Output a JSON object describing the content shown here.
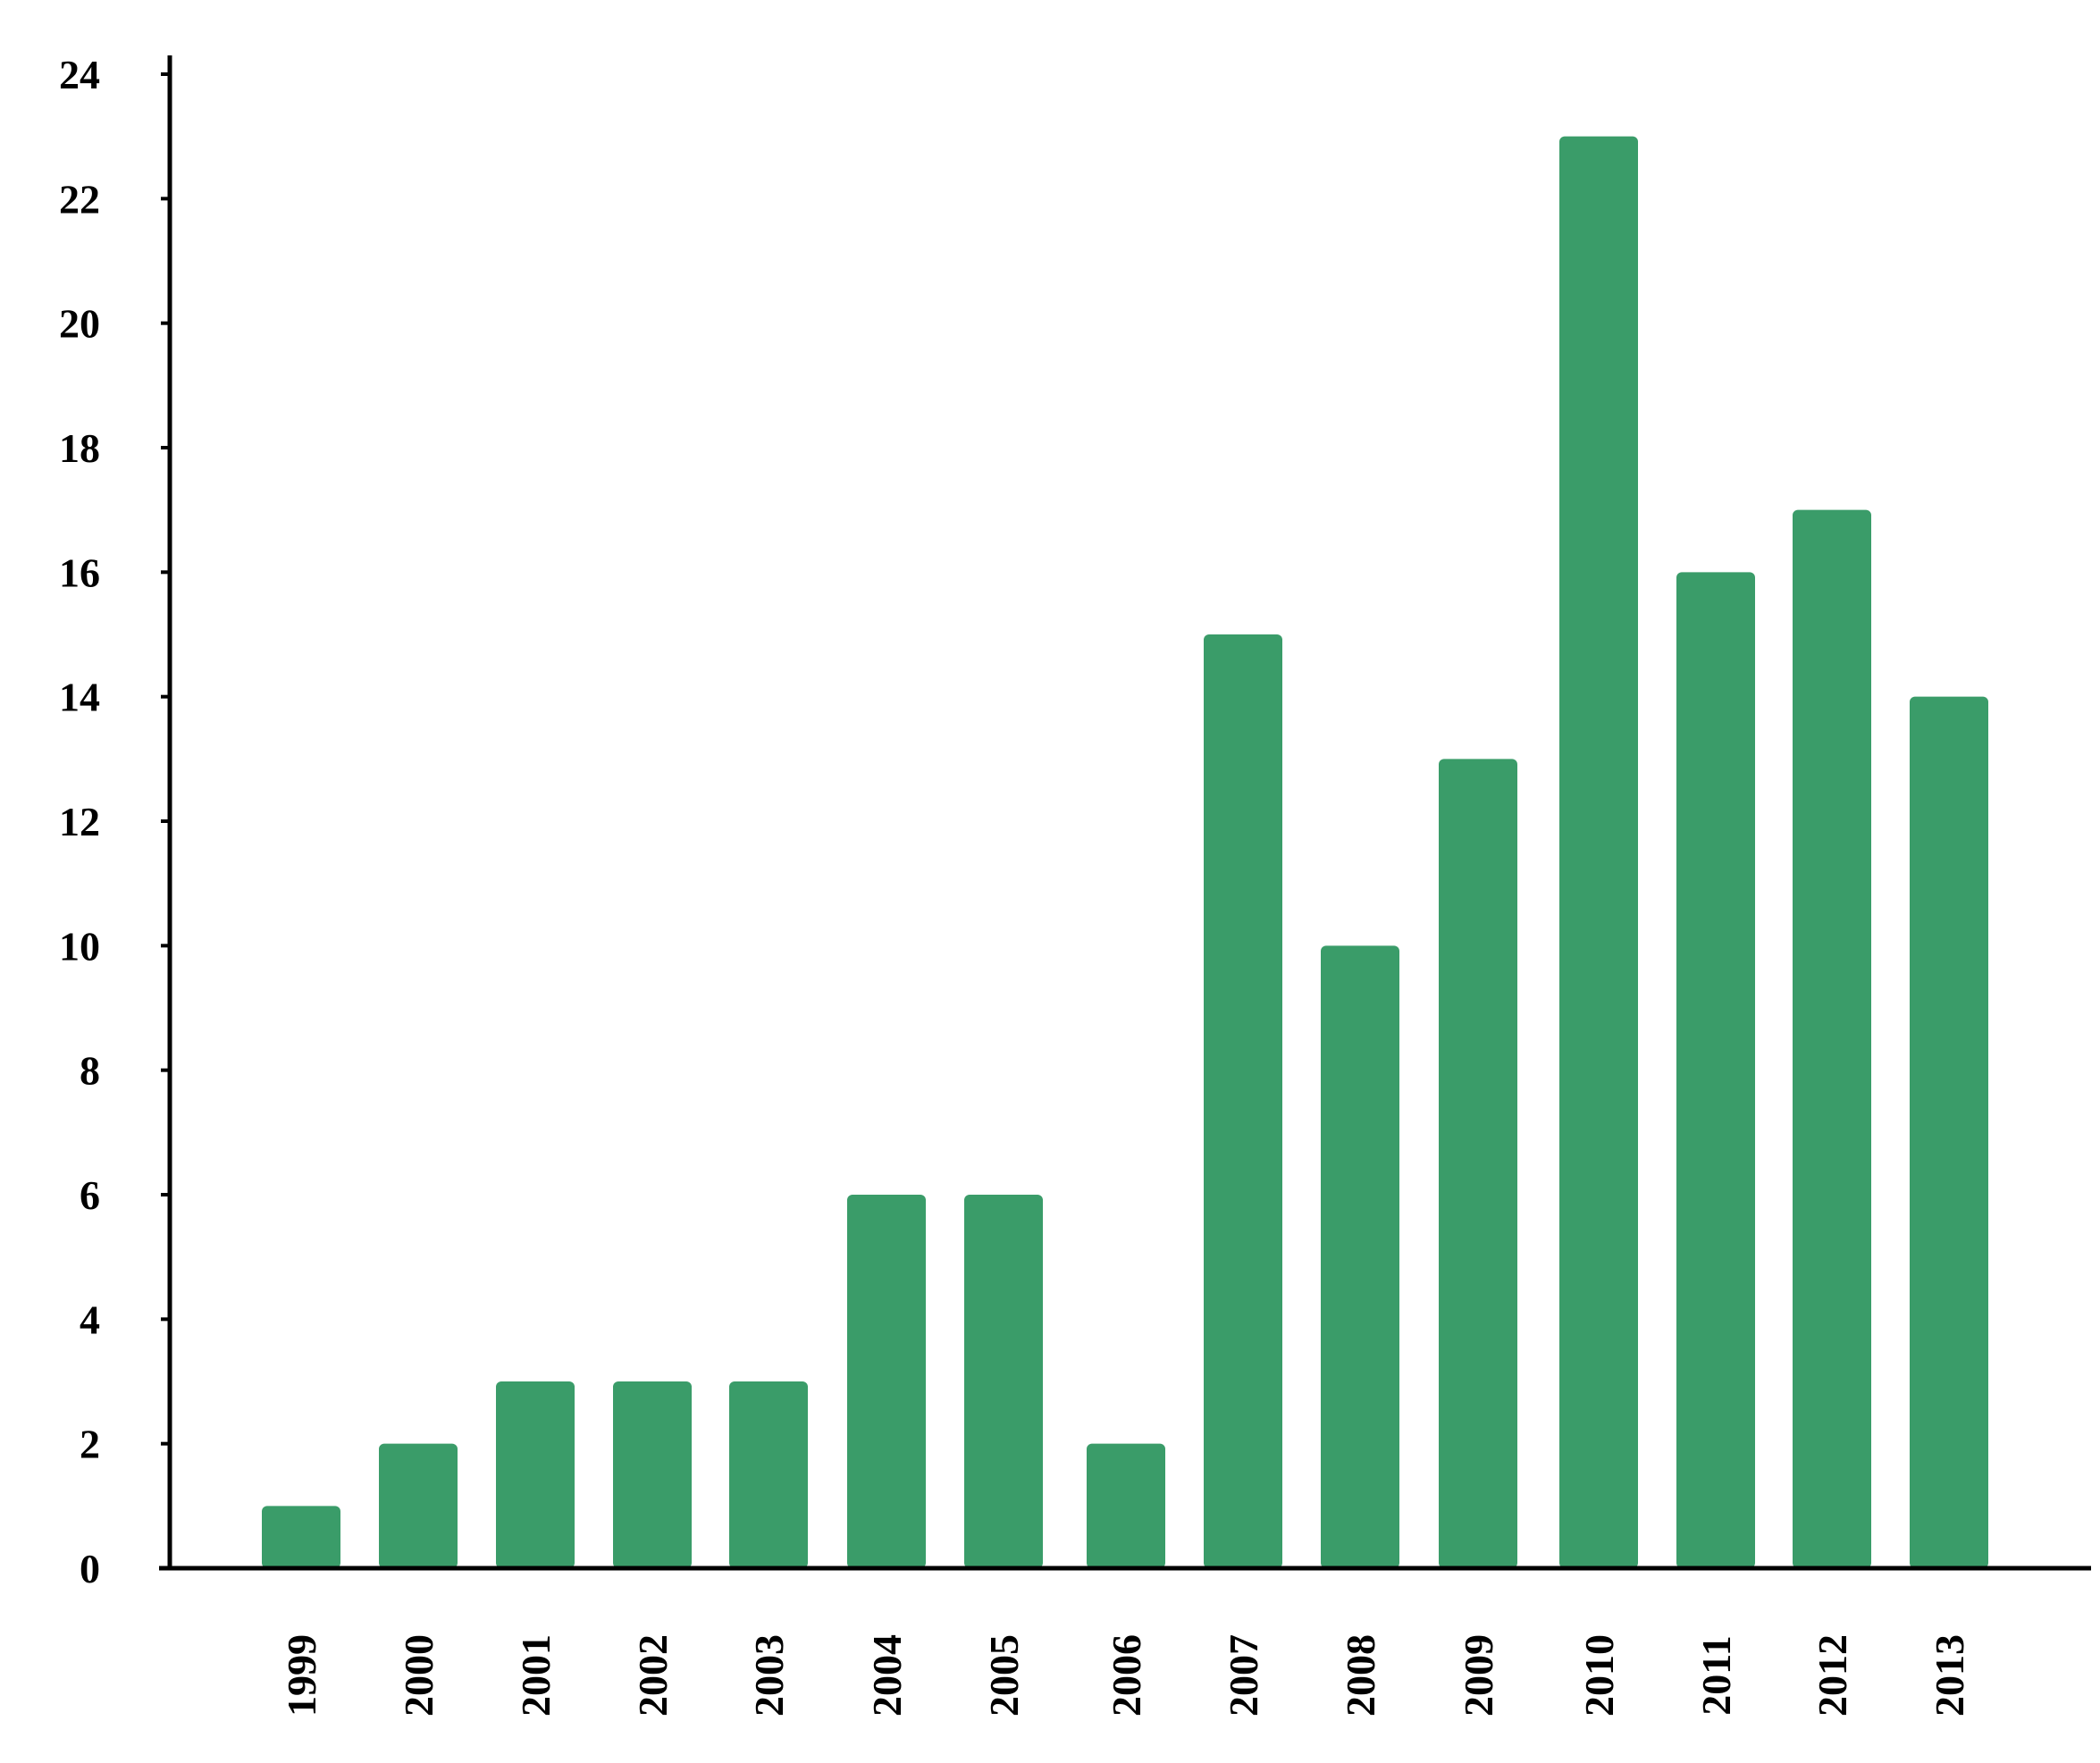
{
  "chart_data": {
    "type": "bar",
    "categories": [
      "1999",
      "2000",
      "2001",
      "2002",
      "2003",
      "2004",
      "2005",
      "2006",
      "2007",
      "2008",
      "2009",
      "2010",
      "2011",
      "2012",
      "2013"
    ],
    "values": [
      1,
      2,
      3,
      3,
      3,
      6,
      6,
      2,
      15,
      10,
      13,
      23,
      16,
      17,
      14
    ],
    "title": "",
    "xlabel": "",
    "ylabel": "",
    "ylim": [
      0,
      24
    ],
    "yticks": [
      "0",
      "2",
      "4",
      "6",
      "8",
      "10",
      "12",
      "14",
      "16",
      "18",
      "20",
      "22",
      "24"
    ],
    "grid": false,
    "bar_color": "#3a9c69"
  }
}
